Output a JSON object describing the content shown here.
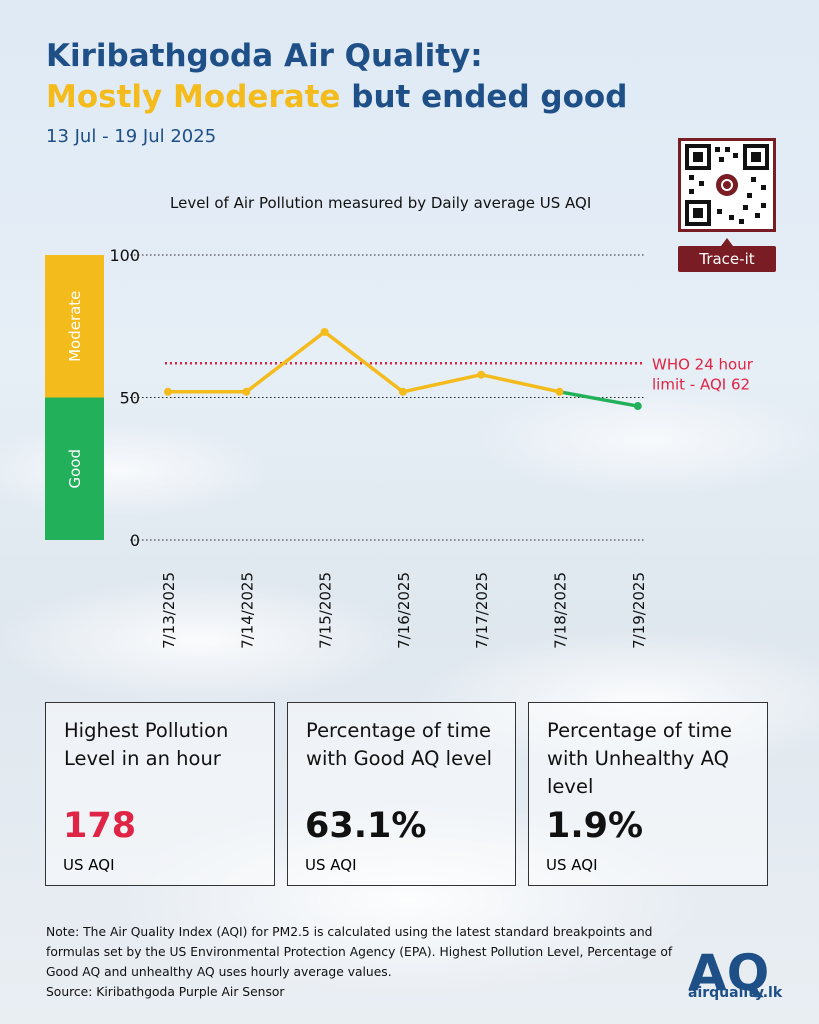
{
  "header": {
    "title_line1": "Kiribathgoda Air Quality:",
    "title_highlight": "Mostly Moderate",
    "title_rest": " but ended good",
    "date_range": "13 Jul - 19 Jul 2025"
  },
  "qr": {
    "label": "Trace-it",
    "icon": "qr-code-icon"
  },
  "chart_data": {
    "type": "line",
    "title": "Level of Air Pollution measured by Daily average US AQI",
    "categories": [
      "7/13/2025",
      "7/14/2025",
      "7/15/2025",
      "7/16/2025",
      "7/17/2025",
      "7/18/2025",
      "7/19/2025"
    ],
    "values": [
      52,
      52,
      73,
      52,
      58,
      52,
      47
    ],
    "ylim": [
      0,
      100
    ],
    "yticks": [
      0,
      50,
      100
    ],
    "bands": [
      {
        "label": "Good",
        "from": 0,
        "to": 50,
        "color": "#22b05a"
      },
      {
        "label": "Moderate",
        "from": 50,
        "to": 100,
        "color": "#f4bb1c"
      }
    ],
    "reference_line": {
      "value": 62,
      "label_line1": "WHO 24 hour",
      "label_line2": "limit - AQI 62",
      "color": "#e02445"
    },
    "colors": {
      "moderate_line": "#f4bb1c",
      "good_line": "#22b05a"
    }
  },
  "cards": [
    {
      "heading": "Highest Pollution Level in an hour",
      "value": "178",
      "unit": "US AQI",
      "value_color": "#e02445"
    },
    {
      "heading": "Percentage of time with Good AQ level",
      "value": "63.1%",
      "unit": "US AQI",
      "value_color": "#111111"
    },
    {
      "heading": "Percentage of time with Unhealthy AQ level",
      "value": "1.9%",
      "unit": "US AQI",
      "value_color": "#111111"
    }
  ],
  "footer": {
    "note": "Note: The Air Quality Index (AQI) for PM2.5 is calculated using the latest standard breakpoints and formulas set by the US Environmental Protection Agency (EPA). Highest Pollution Level, Percentage of Good AQ and unhealthy AQ uses hourly average values.",
    "source": "Source: Kiribathgoda Purple Air Sensor",
    "logo_letters": "AQ",
    "logo_text": "airquality.lk"
  },
  "colors": {
    "brand_blue": "#1e4f86",
    "brand_yellow": "#f4bb1c",
    "brand_red": "#7a1c24"
  }
}
